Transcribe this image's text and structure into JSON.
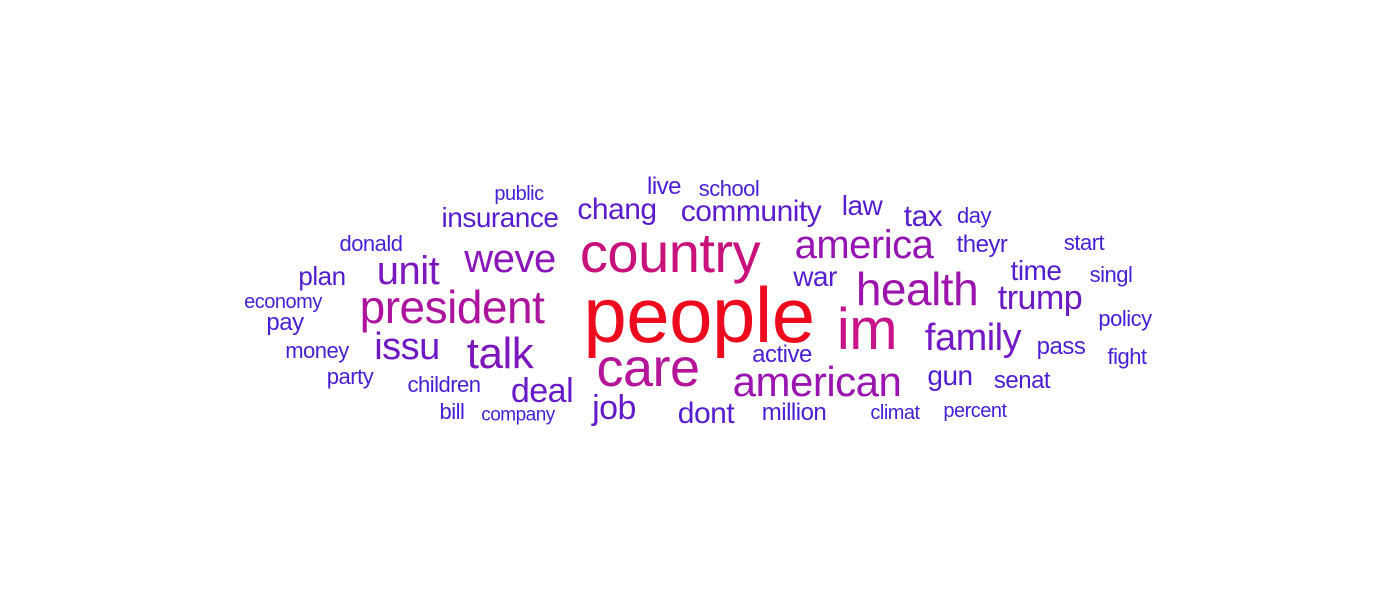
{
  "words": [
    {
      "text": "people",
      "weight": 1.0,
      "color": "#ee0a1e"
    },
    {
      "text": "country",
      "weight": 0.72,
      "color": "#c8117a"
    },
    {
      "text": "im",
      "weight": 0.74,
      "color": "#c81488"
    },
    {
      "text": "care",
      "weight": 0.68,
      "color": "#b51598"
    },
    {
      "text": "president",
      "weight": 0.6,
      "color": "#ad149e"
    },
    {
      "text": "health",
      "weight": 0.6,
      "color": "#9d14ad"
    },
    {
      "text": "american",
      "weight": 0.56,
      "color": "#9a14b0"
    },
    {
      "text": "america",
      "weight": 0.55,
      "color": "#9515b3"
    },
    {
      "text": "weve",
      "weight": 0.52,
      "color": "#8917b9"
    },
    {
      "text": "unit",
      "weight": 0.5,
      "color": "#7b18be"
    },
    {
      "text": "talk",
      "weight": 0.5,
      "color": "#7c17be"
    },
    {
      "text": "issu",
      "weight": 0.45,
      "color": "#6d19c5"
    },
    {
      "text": "family",
      "weight": 0.45,
      "color": "#7419c3"
    },
    {
      "text": "trump",
      "weight": 0.42,
      "color": "#6c1ac6"
    },
    {
      "text": "deal",
      "weight": 0.4,
      "color": "#661ac8"
    },
    {
      "text": "job",
      "weight": 0.4,
      "color": "#631bca"
    },
    {
      "text": "community",
      "weight": 0.36,
      "color": "#5b1cce"
    },
    {
      "text": "chang",
      "weight": 0.36,
      "color": "#5d1ccc"
    },
    {
      "text": "insurance",
      "weight": 0.34,
      "color": "#581ccf"
    },
    {
      "text": "dont",
      "weight": 0.34,
      "color": "#561ccf"
    },
    {
      "text": "tax",
      "weight": 0.33,
      "color": "#551dd0"
    },
    {
      "text": "law",
      "weight": 0.33,
      "color": "#551dd0"
    },
    {
      "text": "war",
      "weight": 0.33,
      "color": "#531dd1"
    },
    {
      "text": "time",
      "weight": 0.32,
      "color": "#521dd1"
    },
    {
      "text": "gun",
      "weight": 0.32,
      "color": "#511dd2"
    },
    {
      "text": "plan",
      "weight": 0.31,
      "color": "#501dd2"
    },
    {
      "text": "pass",
      "weight": 0.3,
      "color": "#4d1ed3"
    },
    {
      "text": "senat",
      "weight": 0.29,
      "color": "#4c1ed3"
    },
    {
      "text": "theyr",
      "weight": 0.29,
      "color": "#4c1ed3"
    },
    {
      "text": "live",
      "weight": 0.3,
      "color": "#4d1ed3"
    },
    {
      "text": "active",
      "weight": 0.29,
      "color": "#4b1ed4"
    },
    {
      "text": "million",
      "weight": 0.28,
      "color": "#4a1ed4"
    },
    {
      "text": "pay",
      "weight": 0.29,
      "color": "#4a1ed4"
    },
    {
      "text": "party",
      "weight": 0.27,
      "color": "#481ed5"
    },
    {
      "text": "children",
      "weight": 0.27,
      "color": "#481ed5"
    },
    {
      "text": "money",
      "weight": 0.27,
      "color": "#471fd5"
    },
    {
      "text": "donald",
      "weight": 0.27,
      "color": "#471fd5"
    },
    {
      "text": "start",
      "weight": 0.27,
      "color": "#471fd5"
    },
    {
      "text": "singl",
      "weight": 0.27,
      "color": "#461fd6"
    },
    {
      "text": "policy",
      "weight": 0.27,
      "color": "#461fd6"
    },
    {
      "text": "fight",
      "weight": 0.27,
      "color": "#461fd6"
    },
    {
      "text": "day",
      "weight": 0.26,
      "color": "#451fd6"
    },
    {
      "text": "school",
      "weight": 0.26,
      "color": "#451fd6"
    },
    {
      "text": "public",
      "weight": 0.25,
      "color": "#441fd6"
    },
    {
      "text": "economy",
      "weight": 0.25,
      "color": "#441fd6"
    },
    {
      "text": "bill",
      "weight": 0.25,
      "color": "#441fd6"
    },
    {
      "text": "climat",
      "weight": 0.25,
      "color": "#441fd6"
    },
    {
      "text": "percent",
      "weight": 0.24,
      "color": "#431fd7"
    },
    {
      "text": "company",
      "weight": 0.23,
      "color": "#431fd7"
    }
  ]
}
